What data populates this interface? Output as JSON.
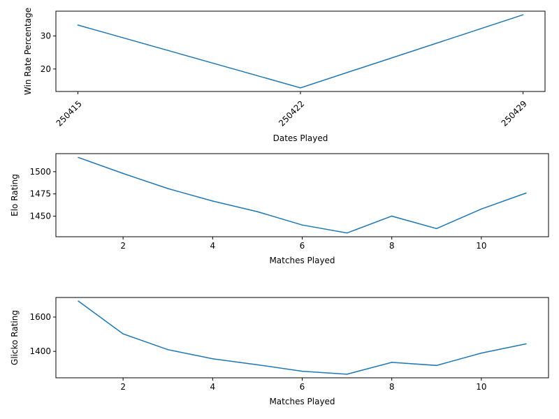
{
  "series_color": "#1f77b4",
  "chart_data": [
    {
      "type": "line",
      "xlabel": "Dates Played",
      "ylabel": "Win Rate Percentage",
      "x": [
        "250415",
        "250422",
        "250429"
      ],
      "values": [
        33.3,
        14.3,
        36.4
      ],
      "xticks": [
        "250415",
        "250422",
        "250429"
      ],
      "yticks": [
        20,
        30
      ],
      "ylim": [
        13.2,
        37.5
      ],
      "xtick_rotation": 45,
      "grid": false,
      "legend": "none"
    },
    {
      "type": "line",
      "xlabel": "Matches Played",
      "ylabel": "Elo Rating",
      "x": [
        1,
        2,
        3,
        4,
        5,
        6,
        7,
        8,
        9,
        10,
        11
      ],
      "values": [
        1516,
        1498,
        1481,
        1467,
        1455,
        1440,
        1431,
        1450,
        1436,
        1458,
        1476
      ],
      "xticks": [
        2,
        4,
        6,
        8,
        10
      ],
      "yticks": [
        1450,
        1475,
        1500
      ],
      "xlim": [
        0.5,
        11.5
      ],
      "ylim": [
        1426.8,
        1520.3
      ],
      "grid": false,
      "legend": "none"
    },
    {
      "type": "line",
      "xlabel": "Matches Played",
      "ylabel": "Glicko Rating",
      "x": [
        1,
        2,
        3,
        4,
        5,
        6,
        7,
        8,
        9,
        10,
        11
      ],
      "values": [
        1693,
        1502,
        1410,
        1357,
        1322,
        1284,
        1267,
        1336,
        1318,
        1390,
        1444
      ],
      "xticks": [
        2,
        4,
        6,
        8,
        10
      ],
      "yticks": [
        1400,
        1600
      ],
      "xlim": [
        0.5,
        11.5
      ],
      "ylim": [
        1246,
        1714
      ],
      "grid": false,
      "legend": "none"
    }
  ]
}
